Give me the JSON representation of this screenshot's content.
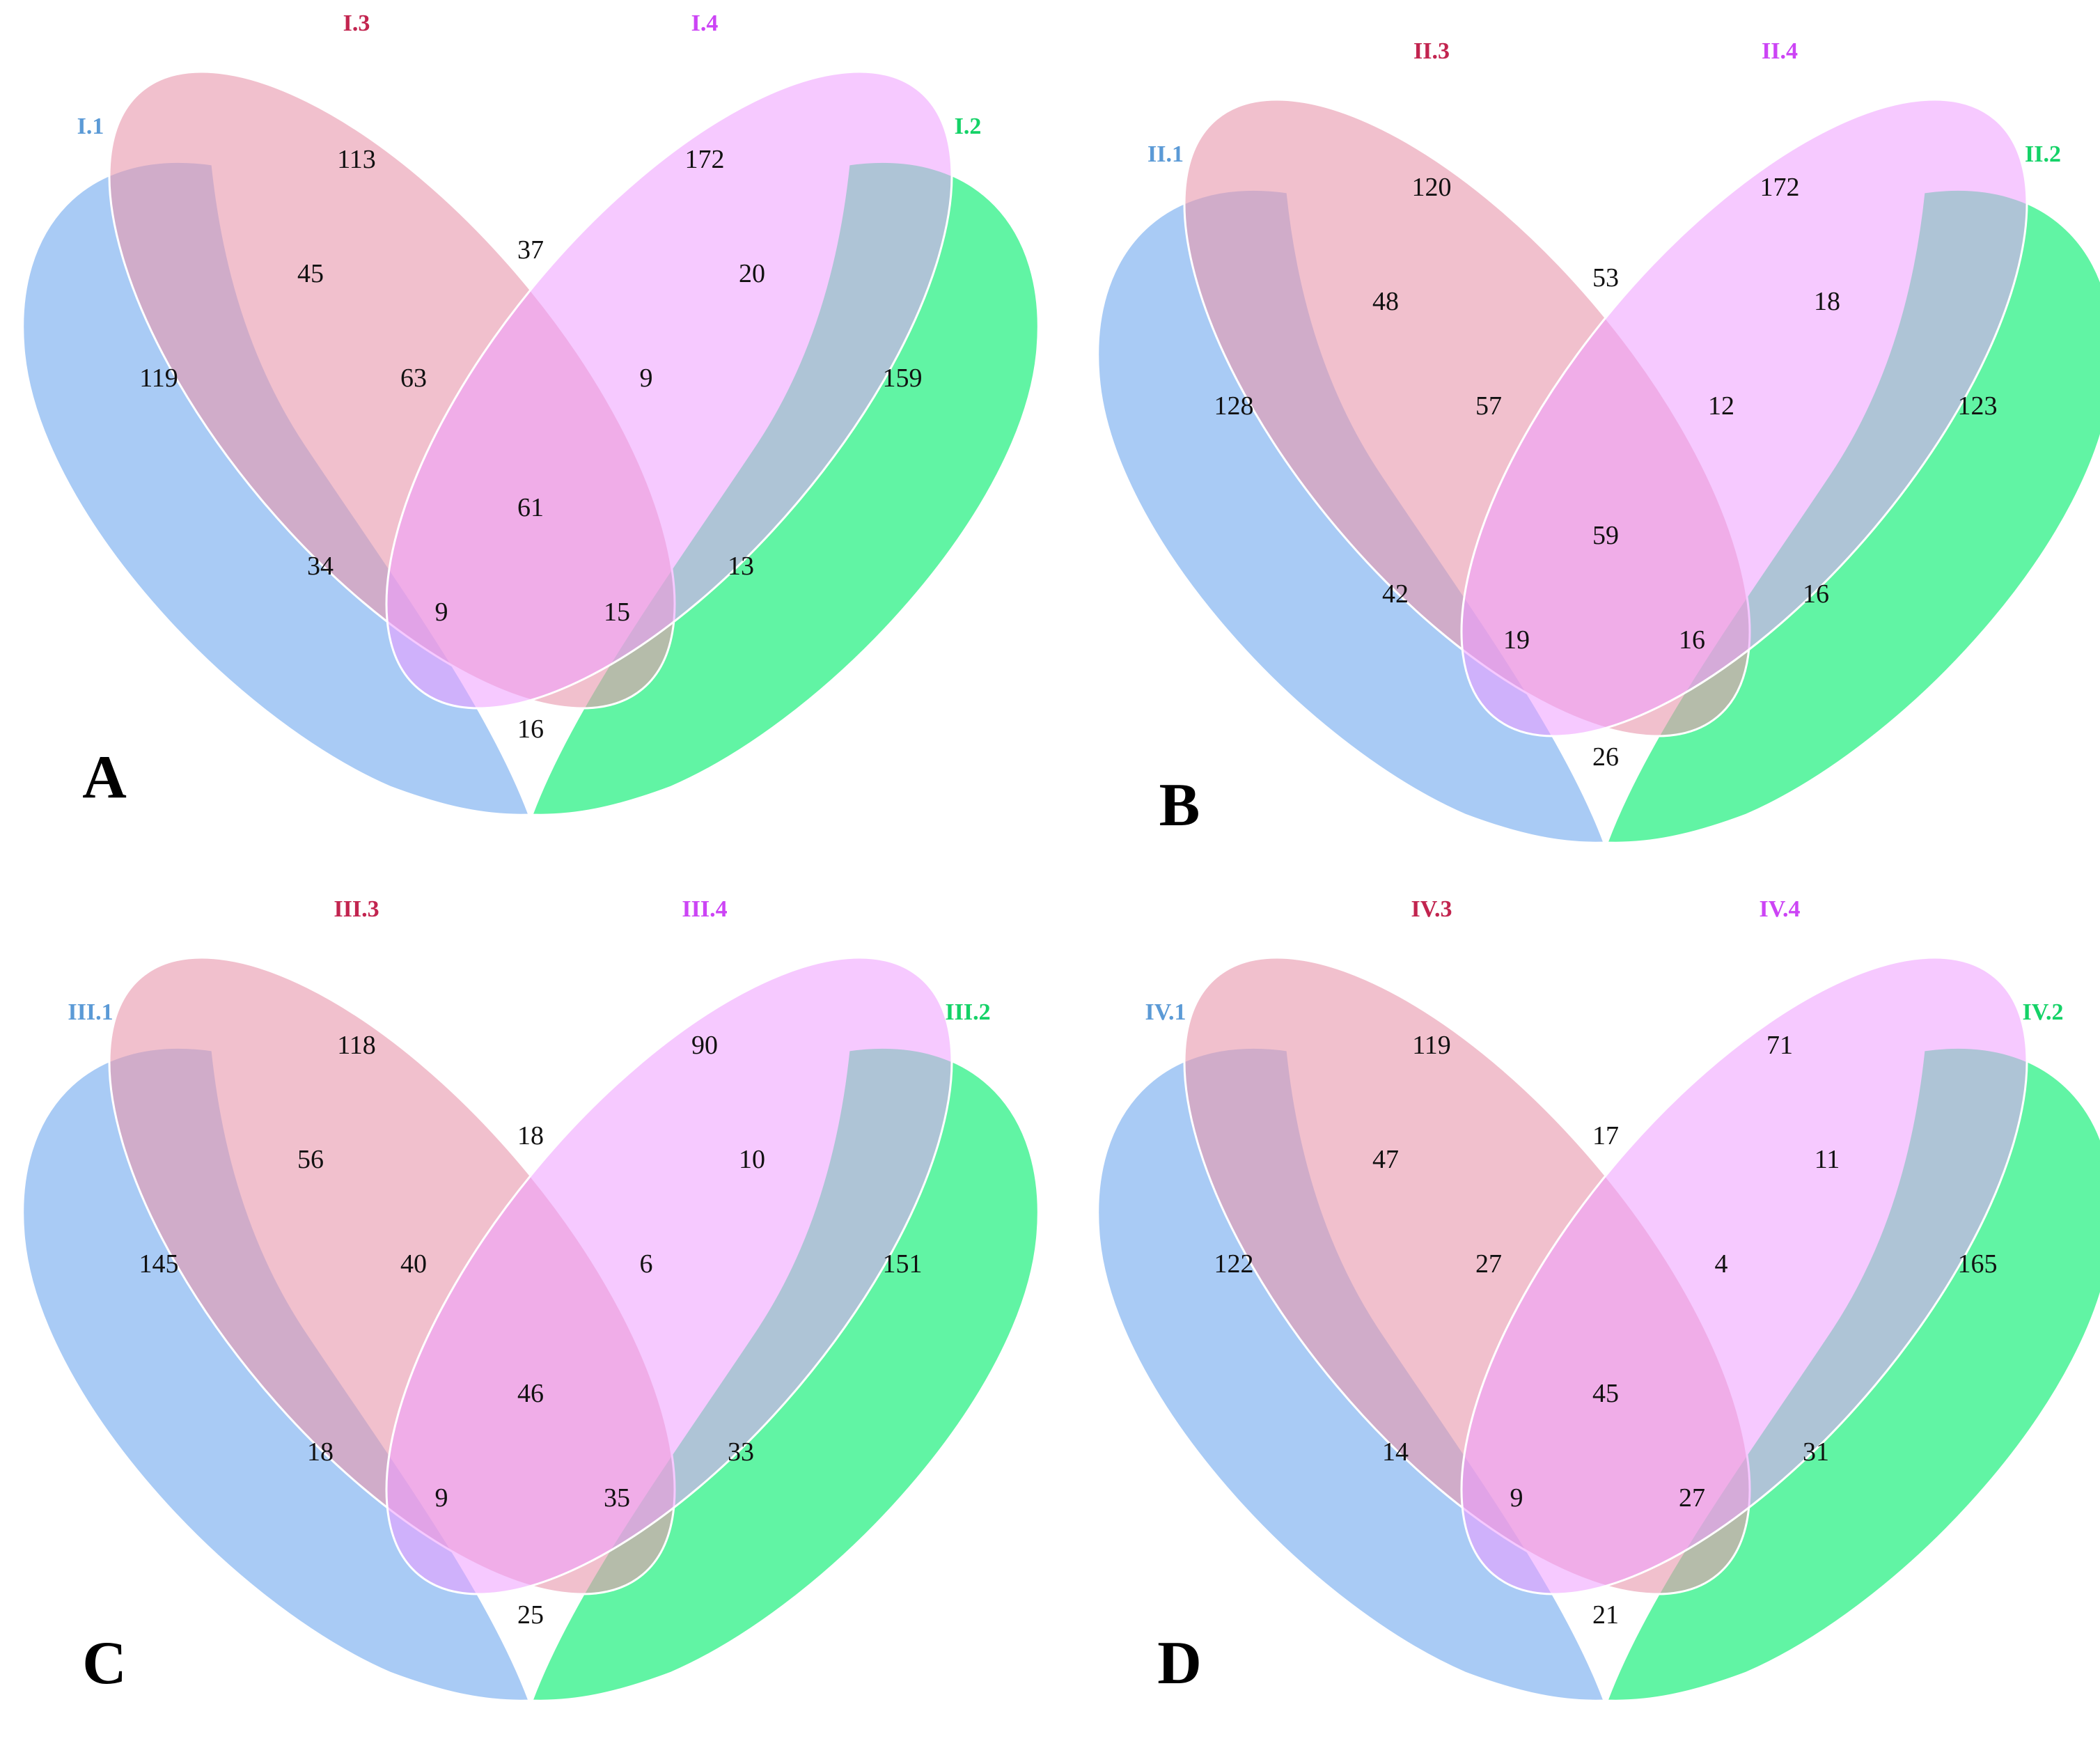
{
  "colors": {
    "set1": "#a4c8f4",
    "set2": "#00ee6c",
    "set3": "#e999ae",
    "set4": "#ef9cff",
    "label1": "#5b9ad6",
    "label2": "#14d267",
    "label3": "#c2244f",
    "label4": "#cc44f5",
    "outline": "#ffffff"
  },
  "panels": [
    {
      "letter": "A",
      "set_labels": [
        "I.1",
        "I.2",
        "I.3",
        "I.4"
      ],
      "regions": {
        "only1": "119",
        "only2": "159",
        "only3": "113",
        "only4": "172",
        "r13": "45",
        "r34": "37",
        "r24": "20",
        "r134": "63",
        "r234": "9",
        "r1234": "61",
        "r14": "34",
        "r23": "13",
        "r124": "9",
        "r123": "15",
        "r12": "16"
      }
    },
    {
      "letter": "B",
      "set_labels": [
        "II.1",
        "II.2",
        "II.3",
        "II.4"
      ],
      "regions": {
        "only1": "128",
        "only2": "123",
        "only3": "120",
        "only4": "172",
        "r13": "48",
        "r34": "53",
        "r24": "18",
        "r134": "57",
        "r234": "12",
        "r1234": "59",
        "r14": "42",
        "r23": "16",
        "r124": "19",
        "r123": "16",
        "r12": "26"
      }
    },
    {
      "letter": "C",
      "set_labels": [
        "III.1",
        "III.2",
        "III.3",
        "III.4"
      ],
      "regions": {
        "only1": "145",
        "only2": "151",
        "only3": "118",
        "only4": "90",
        "r13": "56",
        "r34": "18",
        "r24": "10",
        "r134": "40",
        "r234": "6",
        "r1234": "46",
        "r14": "18",
        "r23": "33",
        "r124": "9",
        "r123": "35",
        "r12": "25"
      }
    },
    {
      "letter": "D",
      "set_labels": [
        "IV.1",
        "IV.2",
        "IV.3",
        "IV.4"
      ],
      "regions": {
        "only1": "122",
        "only2": "165",
        "only3": "119",
        "only4": "71",
        "r13": "47",
        "r34": "17",
        "r24": "11",
        "r134": "27",
        "r234": "4",
        "r1234": "45",
        "r14": "14",
        "r23": "31",
        "r124": "9",
        "r123": "27",
        "r12": "21"
      }
    }
  ]
}
